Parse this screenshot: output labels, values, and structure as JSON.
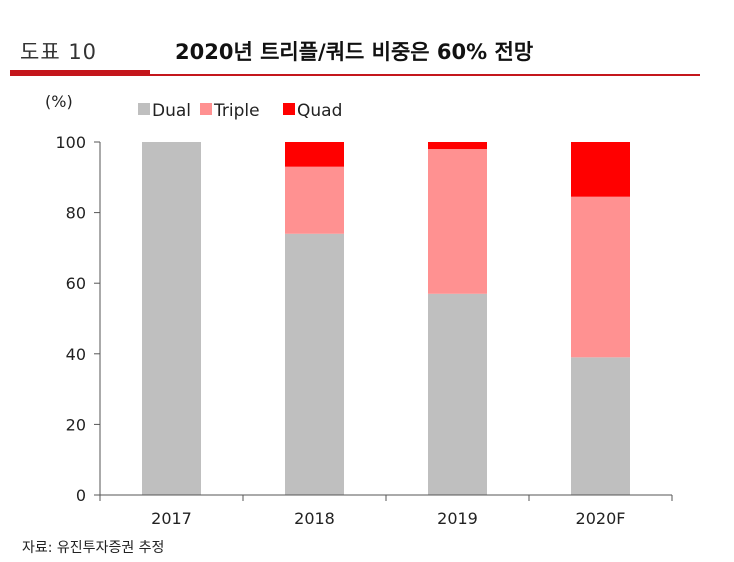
{
  "header": {
    "figure_label": "도표 10",
    "title": "2020년 트리플/쿼드 비중은 60% 전망"
  },
  "source": "자료: 유진투자증권 추정",
  "colors": {
    "accent": "#c4161c",
    "dual": "#bfbfbf",
    "triple": "#ff9191",
    "quad": "#ff0000"
  },
  "chart_data": {
    "type": "bar",
    "stacked": true,
    "unit_label": "(%)",
    "categories": [
      "2017",
      "2018",
      "2019",
      "2020F"
    ],
    "series": [
      {
        "name": "Dual",
        "color": "#bfbfbf",
        "values": [
          100,
          74,
          57,
          39
        ]
      },
      {
        "name": "Triple",
        "color": "#ff9191",
        "values": [
          0,
          19,
          41,
          45.5
        ]
      },
      {
        "name": "Quad",
        "color": "#ff0000",
        "values": [
          0,
          7,
          2,
          15.5
        ]
      }
    ],
    "ylim": [
      0,
      100
    ],
    "yticks": [
      0,
      20,
      40,
      60,
      80,
      100
    ],
    "grid": false,
    "legend_position": "top-left"
  }
}
